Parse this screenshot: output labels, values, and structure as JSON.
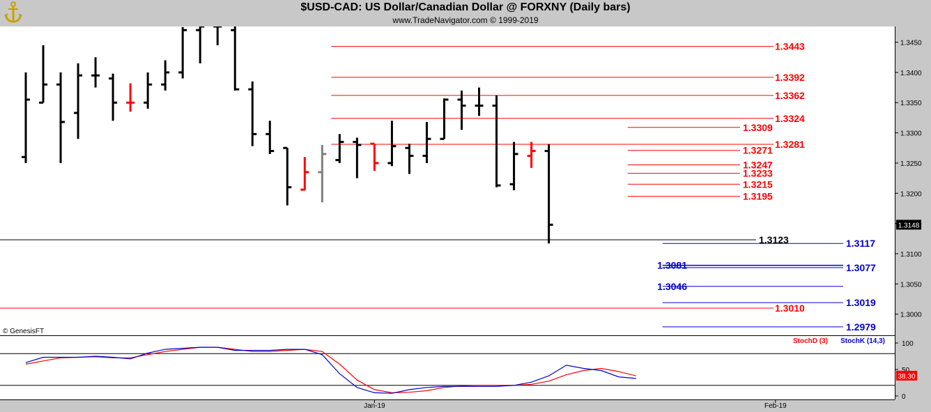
{
  "header": {
    "title": "$USD-CAD:  US Dollar/Canadian Dollar @ FORXNY  (Daily bars)",
    "watermark": "www.TradeNavigator.com © 1999-2019",
    "copyright": "© GenesisFT",
    "logo_icon": "anchor-logo-icon"
  },
  "chart_data": [
    {
      "type": "ohlc",
      "panel": "price",
      "y_ticks": [
        "1.3450",
        "1.3400",
        "1.3350",
        "1.3300",
        "1.3250",
        "1.3200",
        "1.3150",
        "1.3100",
        "1.3050",
        "1.3000"
      ],
      "ylim": [
        1.2965,
        1.3476
      ],
      "last_price": "1.3148",
      "x_ticks": [
        {
          "label": "Jan-19",
          "bar": 20
        },
        {
          "label": "Feb-19",
          "bar": 43
        }
      ],
      "bars": [
        {
          "o": 1.326,
          "h": 1.34,
          "l": 1.325,
          "c": 1.3355,
          "color": "#000000"
        },
        {
          "o": 1.335,
          "h": 1.3445,
          "l": 1.335,
          "c": 1.338,
          "color": "#000000"
        },
        {
          "o": 1.338,
          "h": 1.34,
          "l": 1.325,
          "c": 1.3318,
          "color": "#000000"
        },
        {
          "o": 1.3333,
          "h": 1.3415,
          "l": 1.329,
          "c": 1.3395,
          "color": "#000000"
        },
        {
          "o": 1.3395,
          "h": 1.3425,
          "l": 1.3375,
          "c": 1.3395,
          "color": "#000000"
        },
        {
          "o": 1.339,
          "h": 1.3398,
          "l": 1.332,
          "c": 1.335,
          "color": "#000000"
        },
        {
          "o": 1.335,
          "h": 1.3382,
          "l": 1.3335,
          "c": 1.335,
          "color": "#ff0000"
        },
        {
          "o": 1.335,
          "h": 1.34,
          "l": 1.334,
          "c": 1.338,
          "color": "#000000"
        },
        {
          "o": 1.338,
          "h": 1.342,
          "l": 1.337,
          "c": 1.34,
          "color": "#000000"
        },
        {
          "o": 1.34,
          "h": 1.3475,
          "l": 1.339,
          "c": 1.347,
          "color": "#000000"
        },
        {
          "o": 1.347,
          "h": 1.3476,
          "l": 1.3415,
          "c": 1.3476,
          "color": "#000000"
        },
        {
          "o": 1.3476,
          "h": 1.3476,
          "l": 1.3445,
          "c": 1.3476,
          "color": "#000000"
        },
        {
          "o": 1.347,
          "h": 1.3476,
          "l": 1.337,
          "c": 1.3372,
          "color": "#000000"
        },
        {
          "o": 1.3372,
          "h": 1.3385,
          "l": 1.3278,
          "c": 1.3298,
          "color": "#000000"
        },
        {
          "o": 1.3298,
          "h": 1.332,
          "l": 1.3265,
          "c": 1.327,
          "color": "#000000"
        },
        {
          "o": 1.3275,
          "h": 1.3275,
          "l": 1.318,
          "c": 1.321,
          "color": "#000000"
        },
        {
          "o": 1.3206,
          "h": 1.326,
          "l": 1.3205,
          "c": 1.3235,
          "color": "#ff0000"
        },
        {
          "o": 1.3235,
          "h": 1.328,
          "l": 1.3185,
          "c": 1.3265,
          "color": "#808080"
        },
        {
          "o": 1.3255,
          "h": 1.3298,
          "l": 1.325,
          "c": 1.3285,
          "color": "#000000"
        },
        {
          "o": 1.3285,
          "h": 1.3292,
          "l": 1.3225,
          "c": 1.328,
          "color": "#000000"
        },
        {
          "o": 1.3282,
          "h": 1.3282,
          "l": 1.3237,
          "c": 1.325,
          "color": "#ff0000"
        },
        {
          "o": 1.325,
          "h": 1.332,
          "l": 1.3245,
          "c": 1.3278,
          "color": "#000000"
        },
        {
          "o": 1.3275,
          "h": 1.3282,
          "l": 1.3232,
          "c": 1.3262,
          "color": "#000000"
        },
        {
          "o": 1.3262,
          "h": 1.3318,
          "l": 1.325,
          "c": 1.329,
          "color": "#000000"
        },
        {
          "o": 1.329,
          "h": 1.3357,
          "l": 1.329,
          "c": 1.3355,
          "color": "#000000"
        },
        {
          "o": 1.3355,
          "h": 1.337,
          "l": 1.3305,
          "c": 1.3345,
          "color": "#000000"
        },
        {
          "o": 1.3345,
          "h": 1.3375,
          "l": 1.3328,
          "c": 1.3345,
          "color": "#000000"
        },
        {
          "o": 1.3345,
          "h": 1.3362,
          "l": 1.321,
          "c": 1.3213,
          "color": "#000000"
        },
        {
          "o": 1.3215,
          "h": 1.3285,
          "l": 1.3205,
          "c": 1.3265,
          "color": "#000000"
        },
        {
          "o": 1.3262,
          "h": 1.3285,
          "l": 1.3242,
          "c": 1.327,
          "color": "#ff0000"
        },
        {
          "o": 1.327,
          "h": 1.3281,
          "l": 1.3117,
          "c": 1.3148,
          "color": "#000000"
        }
      ],
      "levels": [
        {
          "value": 1.3443,
          "label": "1.3443",
          "color": "#ff0000",
          "line_from_bar": 18,
          "label_side": "right"
        },
        {
          "value": 1.3392,
          "label": "1.3392",
          "color": "#ff0000",
          "line_from_bar": 18,
          "label_side": "right"
        },
        {
          "value": 1.3362,
          "label": "1.3362",
          "color": "#ff0000",
          "line_from_bar": 18,
          "label_side": "right"
        },
        {
          "value": 1.3324,
          "label": "1.3324",
          "color": "#ff0000",
          "line_from_bar": 18,
          "label_side": "right"
        },
        {
          "value": 1.3309,
          "label": "1.3309",
          "color": "#ff0000",
          "line_from_bar": 35,
          "label_side": "mid"
        },
        {
          "value": 1.3281,
          "label": "1.3281",
          "color": "#ff0000",
          "line_from_bar": 18,
          "label_side": "right"
        },
        {
          "value": 1.3271,
          "label": "1.3271",
          "color": "#ff0000",
          "line_from_bar": 35,
          "label_side": "mid"
        },
        {
          "value": 1.3247,
          "label": "1.3247",
          "color": "#ff0000",
          "line_from_bar": 35,
          "label_side": "mid"
        },
        {
          "value": 1.3233,
          "label": "1.3233",
          "color": "#ff0000",
          "line_from_bar": 35,
          "label_side": "mid"
        },
        {
          "value": 1.3215,
          "label": "1.3215",
          "color": "#ff0000",
          "line_from_bar": 35,
          "label_side": "mid"
        },
        {
          "value": 1.3195,
          "label": "1.3195",
          "color": "#ff0000",
          "line_from_bar": 35,
          "label_side": "mid"
        },
        {
          "value": 1.3123,
          "label": "1.3123",
          "color": "#000000",
          "line_from_bar": 0,
          "label_side": "low"
        },
        {
          "value": 1.3117,
          "label": "1.3117",
          "color": "#0000cc",
          "line_from_bar": 37,
          "label_side": "far"
        },
        {
          "value": 1.3081,
          "label": "1.3081",
          "color": "#0000cc",
          "line_from_bar": 37,
          "label_side": "leftmid"
        },
        {
          "value": 1.3077,
          "label": "1.3077",
          "color": "#0000cc",
          "line_from_bar": 37,
          "label_side": "far"
        },
        {
          "value": 1.3046,
          "label": "1.3046",
          "color": "#0000cc",
          "line_from_bar": 37,
          "label_side": "leftmid"
        },
        {
          "value": 1.3019,
          "label": "1.3019",
          "color": "#0000cc",
          "line_from_bar": 37,
          "label_side": "far"
        },
        {
          "value": 1.301,
          "label": "1.3010",
          "color": "#ff0000",
          "line_from_bar": 0,
          "label_side": "right"
        },
        {
          "value": 1.2979,
          "label": "1.2979",
          "color": "#0000cc",
          "line_from_bar": 37,
          "label_side": "far"
        }
      ]
    },
    {
      "type": "line",
      "panel": "stochastic",
      "ylim": [
        0,
        100
      ],
      "y_ticks": [
        "100",
        "50",
        "0"
      ],
      "reference_lines": [
        80,
        20
      ],
      "last_value": "38.30",
      "series": [
        {
          "name": "StochD (3)",
          "color": "#ff0000",
          "values": [
            60,
            66,
            72,
            73,
            74,
            72,
            72,
            78,
            84,
            88,
            92,
            92,
            88,
            84,
            84,
            86,
            88,
            84,
            60,
            30,
            12,
            6,
            7,
            10,
            16,
            19,
            20,
            20,
            20,
            22,
            28,
            40,
            48,
            52,
            46,
            38
          ]
        },
        {
          "name": "StochK (14,3)",
          "color": "#0000cc",
          "values": [
            63,
            73,
            73,
            73,
            75,
            73,
            70,
            81,
            88,
            90,
            92,
            92,
            86,
            86,
            86,
            88,
            88,
            78,
            42,
            16,
            6,
            5,
            12,
            16,
            18,
            18,
            18,
            18,
            20,
            26,
            38,
            58,
            52,
            48,
            36,
            33
          ]
        }
      ]
    }
  ]
}
